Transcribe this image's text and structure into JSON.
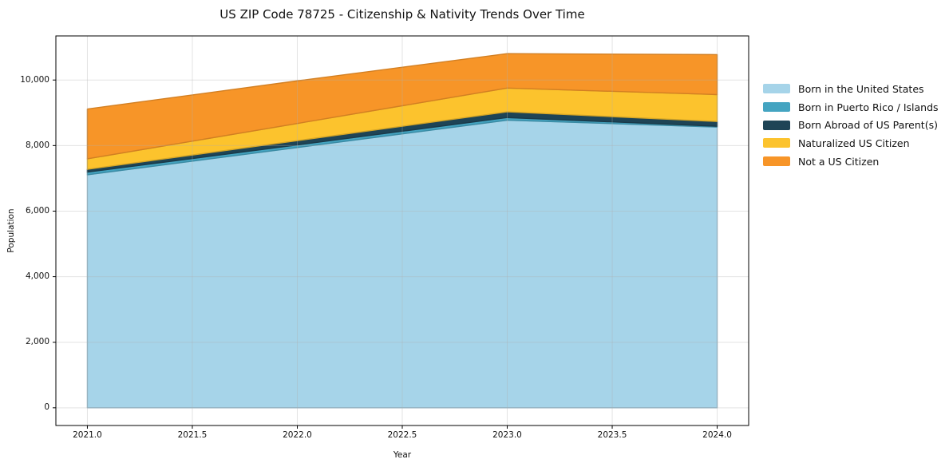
{
  "chart_data": {
    "type": "area",
    "stacked": true,
    "title": "US ZIP Code 78725 - Citizenship & Nativity Trends Over Time",
    "xlabel": "Year",
    "ylabel": "Population",
    "x": [
      2021,
      2022,
      2023,
      2024
    ],
    "series": [
      {
        "name": "Born in the United States",
        "color": "#a6d4e9",
        "values": [
          7110,
          7940,
          8775,
          8565
        ]
      },
      {
        "name": "Born in Puerto Rico / Islands",
        "color": "#44a4c1",
        "values": [
          80,
          80,
          80,
          25
        ]
      },
      {
        "name": "Born Abroad of US Parent(s)",
        "color": "#1e4456",
        "values": [
          85,
          130,
          175,
          145
        ]
      },
      {
        "name": "Naturalized US Citizen",
        "color": "#fcc32d",
        "values": [
          320,
          525,
          725,
          820
        ]
      },
      {
        "name": "Not a US Citizen",
        "color": "#f79528",
        "values": [
          1520,
          1300,
          1050,
          1220
        ]
      }
    ],
    "totals_by_year": [
      9115,
      9975,
      10805,
      10775
    ],
    "x_ticks": [
      "2021.0",
      "2021.5",
      "2022.0",
      "2022.5",
      "2023.0",
      "2023.5",
      "2024.0"
    ],
    "x_tick_values": [
      2021,
      2021.5,
      2022,
      2022.5,
      2023,
      2023.5,
      2024
    ],
    "y_ticks": [
      "0",
      "2,000",
      "4,000",
      "6,000",
      "8,000",
      "10,000"
    ],
    "y_tick_values": [
      0,
      2000,
      4000,
      6000,
      8000,
      10000
    ],
    "xlim": [
      2020.85,
      2024.15
    ],
    "ylim": [
      -540,
      11345
    ],
    "grid": true,
    "legend_position": "right"
  },
  "colors": {
    "background": "#ffffff",
    "spine": "#000000",
    "grid_rgba": "rgba(176,176,176,0.35)",
    "tick": "#000000"
  }
}
